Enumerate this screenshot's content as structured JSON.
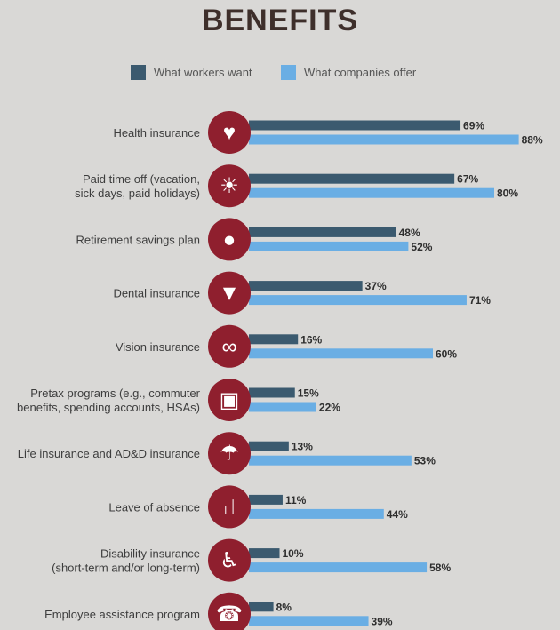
{
  "chart_data": {
    "type": "bar",
    "orientation": "horizontal",
    "title": "BENEFITS",
    "categories": [
      [
        "Health insurance"
      ],
      [
        "Paid time off (vacation,",
        "sick days, paid holidays)"
      ],
      [
        "Retirement savings plan"
      ],
      [
        "Dental insurance"
      ],
      [
        "Vision insurance"
      ],
      [
        "Pretax programs (e.g., commuter",
        "benefits, spending accounts, HSAs)"
      ],
      [
        "Life insurance and AD&D insurance"
      ],
      [
        "Leave of absence"
      ],
      [
        "Disability insurance",
        "(short-term and/or long-term)"
      ],
      [
        "Employee assistance program"
      ]
    ],
    "icons": [
      "heart-icon",
      "palm-tree-icon",
      "piggy-bank-icon",
      "tooth-icon",
      "glasses-icon",
      "bus-icon",
      "umbrella-family-icon",
      "office-chair-icon",
      "wheelchair-icon",
      "telephone-icon"
    ],
    "series": [
      {
        "name": "What workers want",
        "color": "#3b5a6f",
        "values": [
          69,
          67,
          48,
          37,
          16,
          15,
          13,
          11,
          10,
          8
        ]
      },
      {
        "name": "What companies offer",
        "color": "#6aaee4",
        "values": [
          88,
          80,
          52,
          71,
          60,
          22,
          53,
          44,
          58,
          39
        ]
      }
    ],
    "value_suffix": "%",
    "xlim": [
      0,
      100
    ],
    "legend": "top-center",
    "grid": false
  },
  "colors": {
    "icon_circle": "#8f1f2e",
    "title": "#3e2f2b",
    "background": "#d9d8d6"
  }
}
